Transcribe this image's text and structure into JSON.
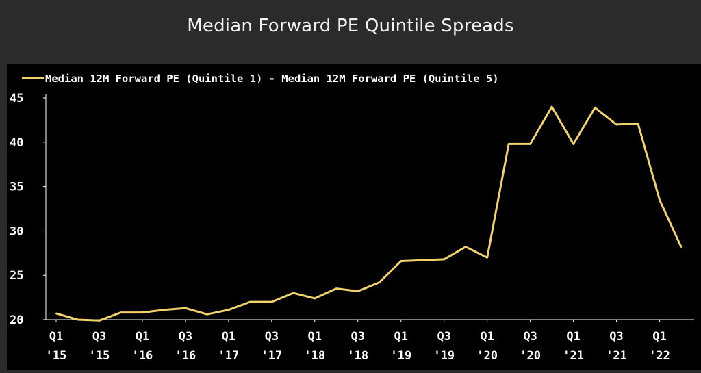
{
  "page": {
    "title": "Median Forward PE Quintile Spreads"
  },
  "chart_data": {
    "type": "line",
    "title": "Median Forward PE Quintile Spreads",
    "xlabel": "",
    "ylabel": "",
    "ylim": [
      20,
      45
    ],
    "yticks": [
      20,
      25,
      30,
      35,
      40,
      45
    ],
    "grid": false,
    "legend_position": "top-left",
    "x": [
      "Q1 '15",
      "Q2 '15",
      "Q3 '15",
      "Q4 '15",
      "Q1 '16",
      "Q2 '16",
      "Q3 '16",
      "Q4 '16",
      "Q1 '17",
      "Q2 '17",
      "Q3 '17",
      "Q4 '17",
      "Q1 '18",
      "Q2 '18",
      "Q3 '18",
      "Q4 '18",
      "Q1 '19",
      "Q2 '19",
      "Q3 '19",
      "Q4 '19",
      "Q1 '20",
      "Q2 '20",
      "Q3 '20",
      "Q4 '20",
      "Q1 '21",
      "Q2 '21",
      "Q3 '21",
      "Q4 '21",
      "Q1 '22",
      "Q2 '22"
    ],
    "xtick_labels": [
      {
        "line1": "Q1",
        "line2": "'15"
      },
      {
        "line1": "Q3",
        "line2": "'15"
      },
      {
        "line1": "Q1",
        "line2": "'16"
      },
      {
        "line1": "Q3",
        "line2": "'16"
      },
      {
        "line1": "Q1",
        "line2": "'17"
      },
      {
        "line1": "Q3",
        "line2": "'17"
      },
      {
        "line1": "Q1",
        "line2": "'18"
      },
      {
        "line1": "Q3",
        "line2": "'18"
      },
      {
        "line1": "Q1",
        "line2": "'19"
      },
      {
        "line1": "Q3",
        "line2": "'19"
      },
      {
        "line1": "Q1",
        "line2": "'20"
      },
      {
        "line1": "Q3",
        "line2": "'20"
      },
      {
        "line1": "Q1",
        "line2": "'21"
      },
      {
        "line1": "Q3",
        "line2": "'21"
      },
      {
        "line1": "Q1",
        "line2": "'22"
      }
    ],
    "series": [
      {
        "name": "Median 12M Forward PE (Quintile 1) - Median 12M Forward PE (Quintile 5)",
        "color": "#f2d36b",
        "values": [
          20.7,
          20.0,
          19.9,
          20.8,
          20.8,
          21.1,
          21.3,
          20.6,
          21.1,
          22.0,
          22.0,
          23.0,
          22.4,
          23.5,
          23.2,
          24.2,
          26.6,
          26.7,
          26.8,
          28.2,
          27.0,
          39.8,
          39.8,
          44.0,
          39.8,
          43.9,
          42.0,
          42.1,
          33.5,
          28.2
        ]
      }
    ]
  }
}
